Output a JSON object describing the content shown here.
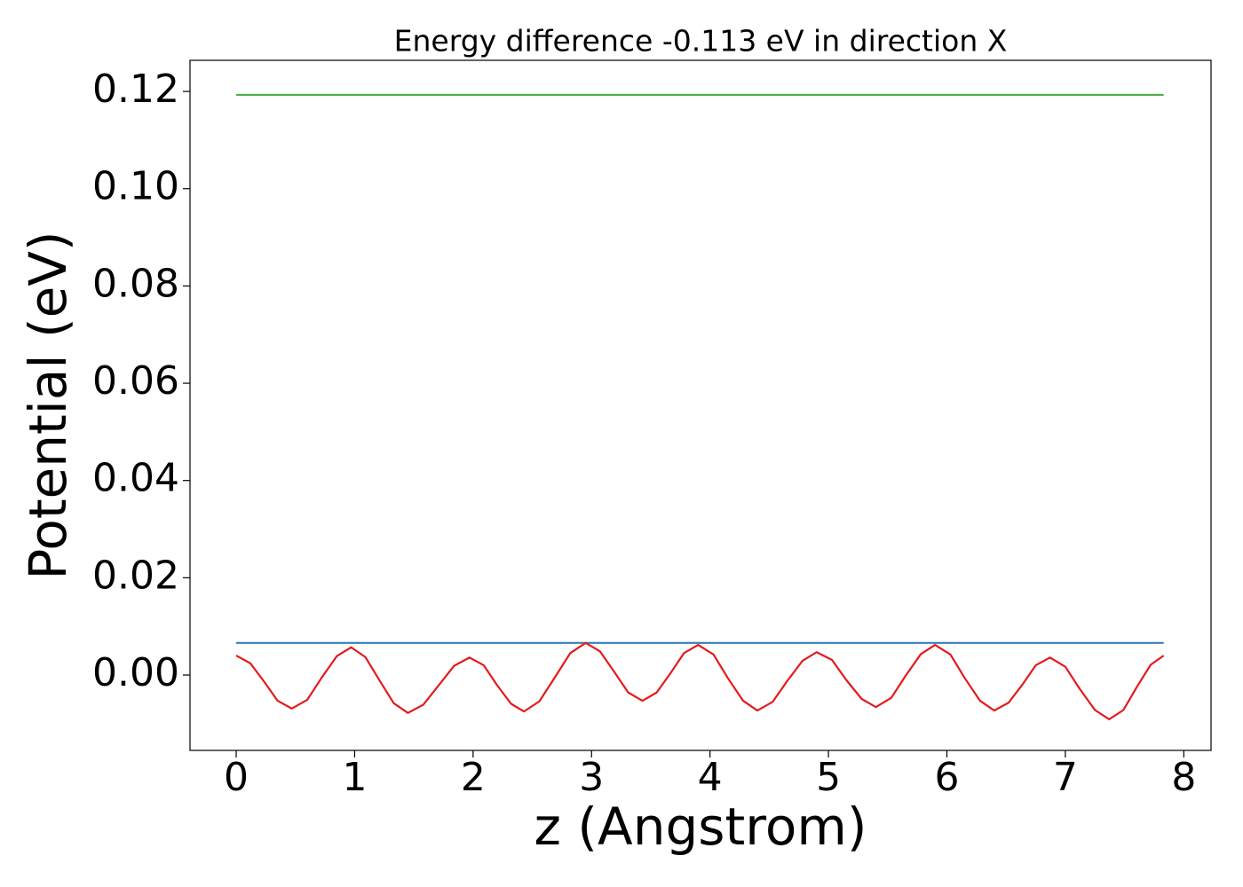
{
  "chart_data": {
    "type": "line",
    "title": "Energy difference -0.113 eV in direction X",
    "xlabel": "z (Angstrom)",
    "ylabel": "Potential (eV)",
    "xlim": [
      -0.39,
      8.23
    ],
    "ylim": [
      -0.0155,
      0.1264
    ],
    "xticks": [
      0,
      1,
      2,
      3,
      4,
      5,
      6,
      7,
      8
    ],
    "yticks": [
      {
        "value": 0,
        "label": "0.00"
      },
      0.02,
      0.04,
      0.06,
      0.08,
      {
        "value": 0.1,
        "label": "0.10"
      },
      0.12
    ],
    "grid": false,
    "series": [
      {
        "color": "#4daf4a",
        "x": [
          0,
          7.83
        ],
        "values": [
          0.1193,
          0.1193
        ]
      },
      {
        "color": "#377eb8",
        "x": [
          0,
          7.83
        ],
        "values": [
          0.0066,
          0.0066
        ]
      },
      {
        "color": "#e41a1c",
        "x": [
          0,
          0.12,
          0.24,
          0.35,
          0.47,
          0.6,
          0.72,
          0.85,
          0.97,
          1.09,
          1.21,
          1.33,
          1.45,
          1.58,
          1.71,
          1.84,
          1.97,
          2.09,
          2.2,
          2.32,
          2.43,
          2.56,
          2.69,
          2.82,
          2.95,
          3.07,
          3.19,
          3.31,
          3.43,
          3.55,
          3.67,
          3.78,
          3.9,
          4.03,
          4.15,
          4.28,
          4.4,
          4.53,
          4.65,
          4.78,
          4.9,
          5.03,
          5.15,
          5.28,
          5.4,
          5.53,
          5.65,
          5.78,
          5.9,
          6.03,
          6.15,
          6.28,
          6.4,
          6.52,
          6.64,
          6.75,
          6.87,
          7.0,
          7.12,
          7.25,
          7.37,
          7.49,
          7.6,
          7.72,
          7.83
        ],
        "values": [
          0.004,
          0.0024,
          -0.0015,
          -0.0053,
          -0.0069,
          -0.0051,
          -0.0006,
          0.0039,
          0.0057,
          0.0037,
          -0.0011,
          -0.0058,
          -0.0078,
          -0.0061,
          -0.0021,
          0.0019,
          0.0036,
          0.002,
          -0.002,
          -0.0059,
          -0.0075,
          -0.0054,
          -0.0005,
          0.0045,
          0.0066,
          0.0049,
          0.0007,
          -0.0036,
          -0.0053,
          -0.0036,
          0.0005,
          0.0045,
          0.0062,
          0.0042,
          -0.0006,
          -0.0053,
          -0.0073,
          -0.0055,
          -0.0013,
          0.0029,
          0.0047,
          0.0031,
          -0.001,
          -0.0049,
          -0.0066,
          -0.0047,
          -0.0002,
          0.0043,
          0.0062,
          0.0042,
          -0.0006,
          -0.0053,
          -0.0073,
          -0.0057,
          -0.0019,
          0.002,
          0.0036,
          0.0017,
          -0.0028,
          -0.0072,
          -0.0091,
          -0.0072,
          -0.0026,
          0.0021,
          0.004
        ]
      }
    ]
  }
}
